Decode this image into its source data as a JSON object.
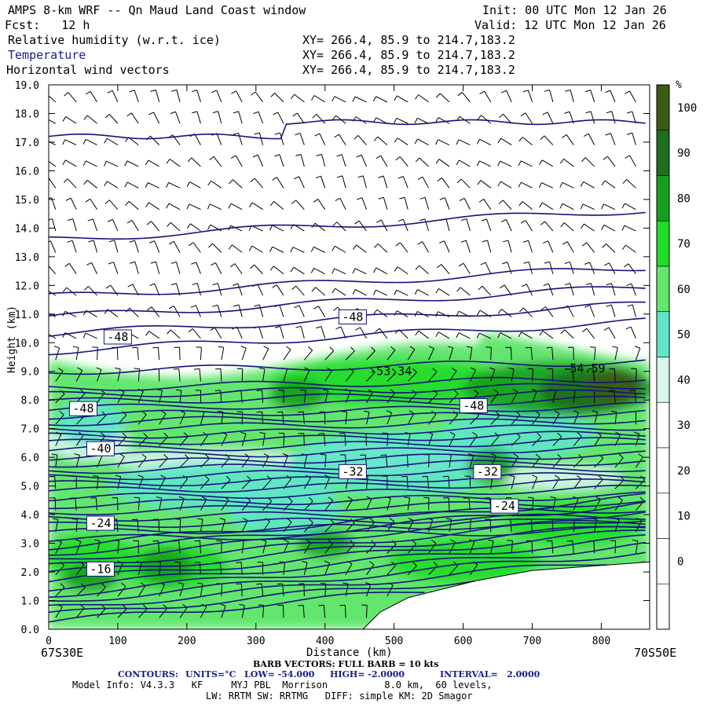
{
  "header": {
    "title": "AMPS 8-km WRF -- Qn Maud Land Coast window",
    "fcst": "Fcst:   12 h",
    "init": "Init: 00 UTC Mon 12 Jan 26",
    "valid": "Valid: 12 UTC Mon 12 Jan 26",
    "fields": [
      {
        "name": "Relative humidity (w.r.t. ice)",
        "xy": "XY= 266.4, 85.9 to 214.7,183.2"
      },
      {
        "name": "Temperature",
        "xy": "XY= 266.4, 85.9 to 214.7,183.2"
      },
      {
        "name": "Horizontal wind vectors",
        "xy": "XY= 266.4, 85.9 to 214.7,183.2"
      }
    ]
  },
  "footer": {
    "barb": "BARB VECTORS: FULL BARB = 10 kts",
    "contours_label": "CONTOURS:",
    "units": "UNITS=°C",
    "low": "LOW= -54.000",
    "high": "HIGH= -2.0000",
    "interval": "INTERVAL=   2.0000",
    "model_line1": "Model Info: V4.3.3   KF     MYJ PBL  Morrison          8.0 km,  60 levels,",
    "model_line2": "LW: RRTM SW: RRTMG   DIFF: simple KM: 2D Smagor",
    "left_corner": "67S30E",
    "right_corner": "70S50E"
  },
  "colors": {
    "contour": "#14147a",
    "rh": [
      "#ffffff",
      "#ffffff",
      "#ffffff",
      "#ffffff",
      "#ffffff",
      "#d8f5ee",
      "#5ee6c8",
      "#64e66e",
      "#1edc28",
      "#14a01e",
      "#1e6e1e",
      "#3c5a14"
    ]
  },
  "chart_data": {
    "type": "heatmap",
    "title": "Relative humidity (w.r.t. ice), Temperature, Horizontal wind vectors",
    "xlabel": "Distance (km)",
    "ylabel": "Height (km)",
    "xlim": [
      0,
      870
    ],
    "ylim": [
      0,
      19
    ],
    "x_ticks": [
      "0",
      "100",
      "200",
      "300",
      "400",
      "500",
      "600",
      "700",
      "800"
    ],
    "y_ticks": [
      "0.0",
      "1.0",
      "2.0",
      "3.0",
      "4.0",
      "5.0",
      "6.0",
      "7.0",
      "8.0",
      "9.0",
      "10.0",
      "11.0",
      "12.0",
      "13.0",
      "14.0",
      "15.0",
      "16.0",
      "17.0",
      "18.0",
      "19.0"
    ],
    "colorbar": {
      "unit": "%",
      "labels": [
        "0",
        "10",
        "20",
        "30",
        "40",
        "50",
        "60",
        "70",
        "80",
        "90",
        "100"
      ]
    },
    "contour_labels": [
      {
        "text": "-48",
        "x": 100,
        "y": 10.2
      },
      {
        "text": "-48",
        "x": 440,
        "y": 10.9
      },
      {
        "text": "-53.34",
        "x": 495,
        "y": 9.0
      },
      {
        "text": "-54.59",
        "x": 775,
        "y": 9.1
      },
      {
        "text": "-48",
        "x": 50,
        "y": 7.7
      },
      {
        "text": "-48",
        "x": 615,
        "y": 7.8
      },
      {
        "text": "-40",
        "x": 75,
        "y": 6.3
      },
      {
        "text": "-32",
        "x": 440,
        "y": 5.5
      },
      {
        "text": "-32",
        "x": 635,
        "y": 5.5
      },
      {
        "text": "-24",
        "x": 75,
        "y": 3.7
      },
      {
        "text": "-24",
        "x": 660,
        "y": 4.3
      },
      {
        "text": "-16",
        "x": 75,
        "y": 2.1
      }
    ]
  }
}
